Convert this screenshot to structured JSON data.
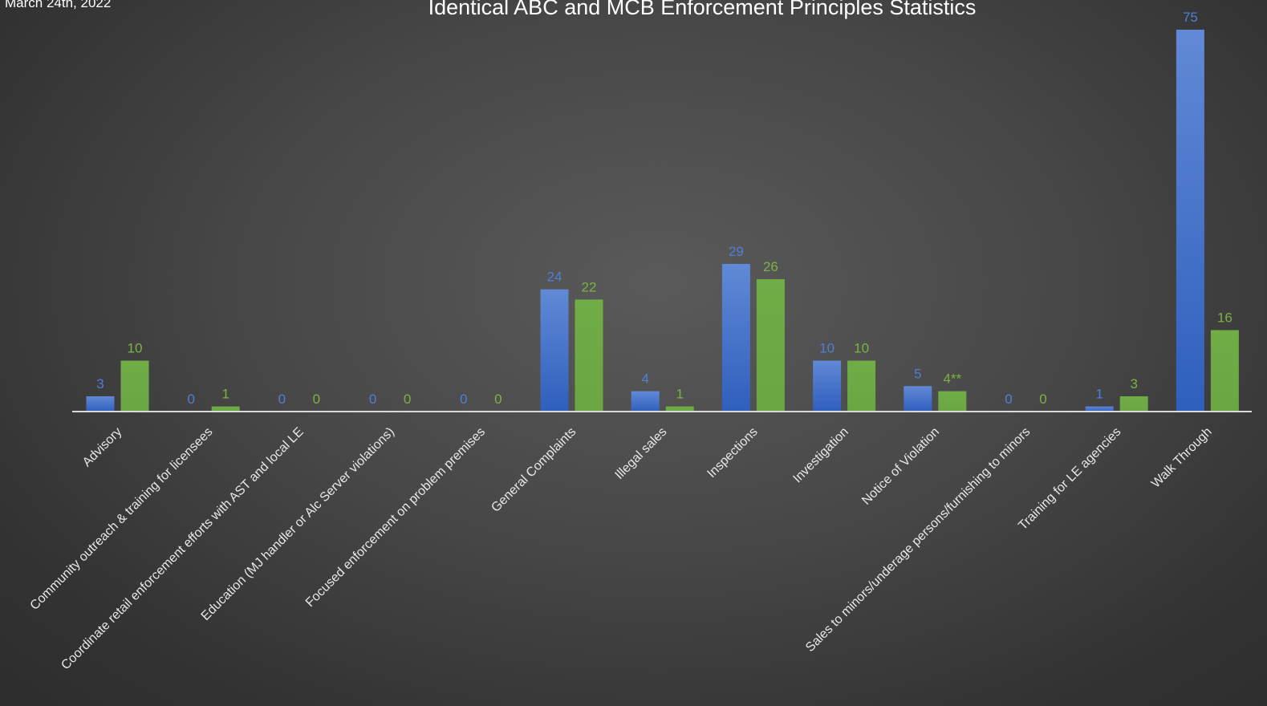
{
  "header": {
    "date": "March 24th, 2022"
  },
  "chart_data": {
    "type": "bar",
    "title": "Identical ABC and MCB Enforcement Principles Statistics",
    "categories": [
      "Advisory",
      "Community outreach & training for licensees",
      "Coordinate retail enforcement efforts with AST and local LE",
      "Education (MJ handler or Alc Server violations)",
      "Focused enforcement on problem premises",
      "General Complaints",
      "Illegal sales",
      "Inspections",
      "Investigation",
      "Notice of Violation",
      "Sales to minors/underage persons/furnishing to minors",
      "Training for LE agencies",
      "Walk Through"
    ],
    "series": [
      {
        "values": [
          3,
          0,
          0,
          0,
          0,
          24,
          4,
          29,
          10,
          5,
          0,
          1,
          75
        ],
        "labels": [
          "3",
          "0",
          "0",
          "0",
          "0",
          "24",
          "4",
          "29",
          "10",
          "5",
          "0",
          "1",
          "75"
        ],
        "color": "#4472c4"
      },
      {
        "values": [
          10,
          1,
          0,
          0,
          0,
          22,
          1,
          26,
          10,
          4,
          0,
          3,
          16
        ],
        "labels": [
          "10",
          "1",
          "0",
          "0",
          "0",
          "22",
          "1",
          "26",
          "10",
          "4**",
          "0",
          "3",
          "16"
        ],
        "color": "#70ad47"
      }
    ],
    "ylim": [
      0,
      75
    ],
    "grid": false,
    "legend": "none",
    "colors": {
      "background": "#4a4a4a",
      "text": "#ffffff",
      "axis": "#d9d9d9"
    }
  }
}
